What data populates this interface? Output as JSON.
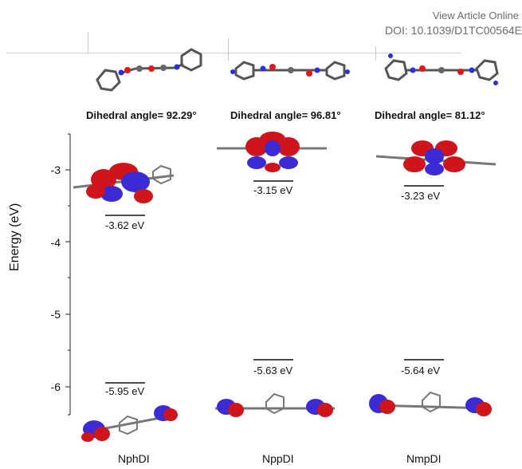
{
  "header": {
    "view_online": "View Article Online",
    "doi": "DOI: 10.1039/D1TC00564E"
  },
  "figure": {
    "ylabel": "Energy (eV)",
    "yticks": [
      "-3",
      "-4",
      "-5",
      "-6"
    ],
    "molecules": [
      {
        "name": "NphDI",
        "dihedral": "Dihedral angle= 92.29°",
        "lumo": "-3.62 eV",
        "homo": "-5.95 eV"
      },
      {
        "name": "NppDI",
        "dihedral": "Dihedral angle= 96.81°",
        "lumo": "-3.15 eV",
        "homo": "-5.63 eV"
      },
      {
        "name": "NmpDI",
        "dihedral": "Dihedral angle= 81.12°",
        "lumo": "-3.23 eV",
        "homo": "-5.64 eV"
      }
    ]
  },
  "colors": {
    "orbital_positive": "#d0141b",
    "orbital_negative": "#3a2bd4",
    "carbon": "#555555",
    "nitrogen": "#2c2ce0",
    "oxygen": "#e01818",
    "hydrogen": "#e8e8e8"
  }
}
